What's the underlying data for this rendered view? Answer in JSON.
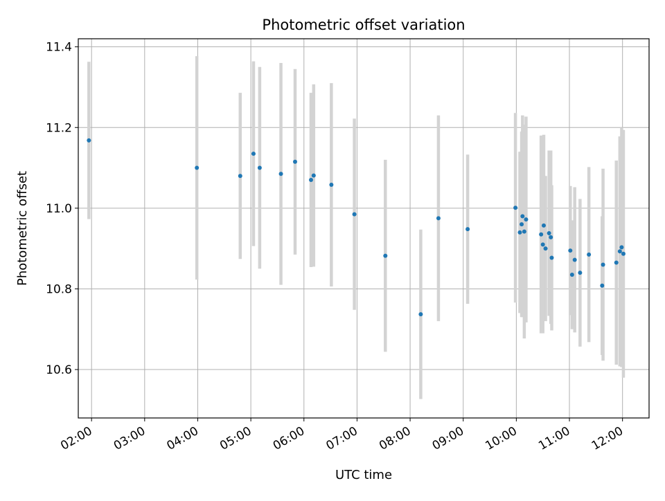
{
  "chart_data": {
    "type": "scatter",
    "title": "Photometric offset variation",
    "xlabel": "UTC time",
    "ylabel": "Photometric offset",
    "x_tick_labels": [
      "02:00",
      "03:00",
      "04:00",
      "05:00",
      "06:00",
      "07:00",
      "08:00",
      "09:00",
      "10:00",
      "11:00",
      "12:00"
    ],
    "y_tick_labels": [
      "10.6",
      "10.8",
      "11.0",
      "11.2",
      "11.4"
    ],
    "y_ticks": [
      10.6,
      10.8,
      11.0,
      11.2,
      11.4
    ],
    "xlim": [
      "01:45",
      "12:30"
    ],
    "ylim": [
      10.48,
      11.42
    ],
    "grid": true,
    "errorbar_color": "#d3d3d3",
    "point_color": "#1f77b4",
    "series": [
      {
        "points": [
          {
            "x": "01:57",
            "y": 11.168,
            "yerr": 0.195
          },
          {
            "x": "03:59",
            "y": 11.1,
            "yerr": 0.277
          },
          {
            "x": "04:48",
            "y": 11.08,
            "yerr": 0.206
          },
          {
            "x": "05:03",
            "y": 11.135,
            "yerr": 0.229
          },
          {
            "x": "05:10",
            "y": 11.1,
            "yerr": 0.25
          },
          {
            "x": "05:34",
            "y": 11.085,
            "yerr": 0.275
          },
          {
            "x": "05:50",
            "y": 11.115,
            "yerr": 0.23
          },
          {
            "x": "06:08",
            "y": 11.07,
            "yerr": 0.216
          },
          {
            "x": "06:11",
            "y": 11.081,
            "yerr": 0.226
          },
          {
            "x": "06:31",
            "y": 11.058,
            "yerr": 0.252
          },
          {
            "x": "06:57",
            "y": 10.985,
            "yerr": 0.237
          },
          {
            "x": "07:32",
            "y": 10.882,
            "yerr": 0.238
          },
          {
            "x": "08:12",
            "y": 10.737,
            "yerr": 0.21
          },
          {
            "x": "08:32",
            "y": 10.975,
            "yerr": 0.255
          },
          {
            "x": "09:05",
            "y": 10.948,
            "yerr": 0.185
          },
          {
            "x": "09:59",
            "y": 11.001,
            "yerr": 0.235
          },
          {
            "x": "10:04",
            "y": 10.94,
            "yerr": 0.2
          },
          {
            "x": "10:06",
            "y": 10.96,
            "yerr": 0.23
          },
          {
            "x": "10:07",
            "y": 10.98,
            "yerr": 0.25
          },
          {
            "x": "10:09",
            "y": 10.942,
            "yerr": 0.265
          },
          {
            "x": "10:11",
            "y": 10.972,
            "yerr": 0.255
          },
          {
            "x": "10:28",
            "y": 10.935,
            "yerr": 0.245
          },
          {
            "x": "10:30",
            "y": 10.91,
            "yerr": 0.22
          },
          {
            "x": "10:31",
            "y": 10.957,
            "yerr": 0.225
          },
          {
            "x": "10:33",
            "y": 10.9,
            "yerr": 0.18
          },
          {
            "x": "10:37",
            "y": 10.938,
            "yerr": 0.205
          },
          {
            "x": "10:39",
            "y": 10.928,
            "yerr": 0.215
          },
          {
            "x": "10:40",
            "y": 10.877,
            "yerr": 0.18
          },
          {
            "x": "11:01",
            "y": 10.895,
            "yerr": 0.16
          },
          {
            "x": "11:03",
            "y": 10.835,
            "yerr": 0.135
          },
          {
            "x": "11:06",
            "y": 10.872,
            "yerr": 0.18
          },
          {
            "x": "11:12",
            "y": 10.84,
            "yerr": 0.183
          },
          {
            "x": "11:22",
            "y": 10.885,
            "yerr": 0.217
          },
          {
            "x": "11:37",
            "y": 10.808,
            "yerr": 0.172
          },
          {
            "x": "11:38",
            "y": 10.86,
            "yerr": 0.238
          },
          {
            "x": "11:53",
            "y": 10.865,
            "yerr": 0.253
          },
          {
            "x": "11:57",
            "y": 10.893,
            "yerr": 0.285
          },
          {
            "x": "11:59",
            "y": 10.903,
            "yerr": 0.297
          },
          {
            "x": "12:01",
            "y": 10.887,
            "yerr": 0.307
          }
        ]
      }
    ]
  }
}
